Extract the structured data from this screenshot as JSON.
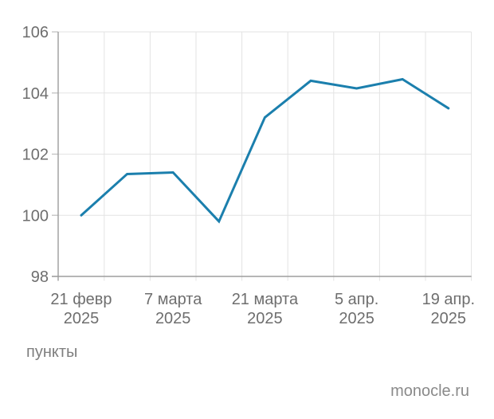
{
  "chart_data": {
    "type": "line",
    "title": "",
    "ylabel": "пункты",
    "source": "monocle.ru",
    "ylim": [
      98,
      106
    ],
    "y_ticks": [
      98,
      100,
      102,
      104,
      106
    ],
    "categories": [
      "21 февр 2025",
      "",
      "7 марта 2025",
      "",
      "21 марта 2025",
      "",
      "5 апр. 2025",
      "",
      "19 апр. 2025"
    ],
    "x_tick_labels": [
      {
        "index": 0,
        "line1": "21 февр",
        "line2": "2025"
      },
      {
        "index": 2,
        "line1": "7 марта",
        "line2": "2025"
      },
      {
        "index": 4,
        "line1": "21 марта",
        "line2": "2025"
      },
      {
        "index": 6,
        "line1": "5 апр.",
        "line2": "2025"
      },
      {
        "index": 8,
        "line1": "19 апр.",
        "line2": "2025"
      }
    ],
    "values": [
      100.0,
      101.35,
      101.4,
      99.8,
      103.2,
      104.4,
      104.15,
      104.45,
      103.5
    ],
    "grid": true,
    "legend": "none",
    "colors": {
      "line": "#1b7fad",
      "grid": "#e3e3e3",
      "axis": "#9d9d9d",
      "tick": "#c2c2c2",
      "tick_label": "#6e6e6e"
    }
  }
}
